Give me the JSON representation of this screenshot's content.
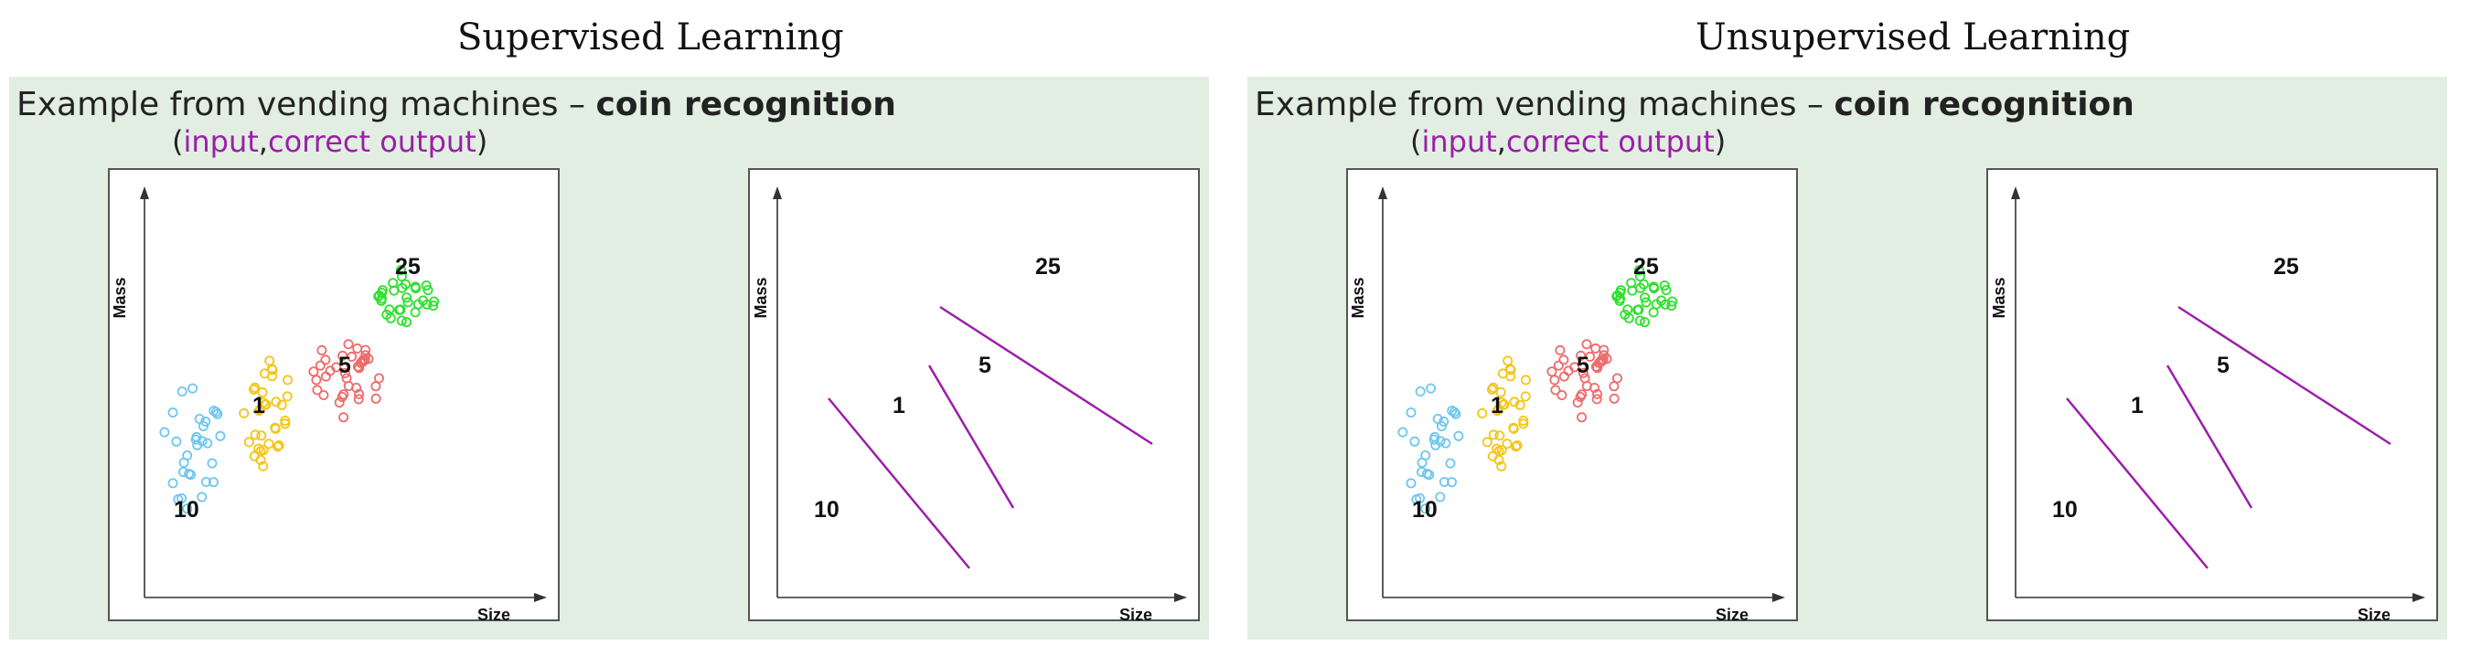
{
  "headings": {
    "left": "Supervised Learning",
    "right": "Unsupervised Learning"
  },
  "example": {
    "prefix": "Example from vending machines – ",
    "bold": "coin recognition",
    "open": "(",
    "input": "input",
    "comma": ",",
    "output": "correct output",
    "close": ")"
  },
  "axes": {
    "y": "Mass",
    "x": "Size"
  },
  "coins": {
    "c10": "10",
    "c1": "1",
    "c5": "5",
    "c25": "25"
  },
  "colors": {
    "c10": "#6ec6ee",
    "c1": "#f5c518",
    "c5": "#ee6b6b",
    "c25": "#2ee02e",
    "boundary": "#9b1fa8",
    "panel": "#e2eee2"
  }
}
